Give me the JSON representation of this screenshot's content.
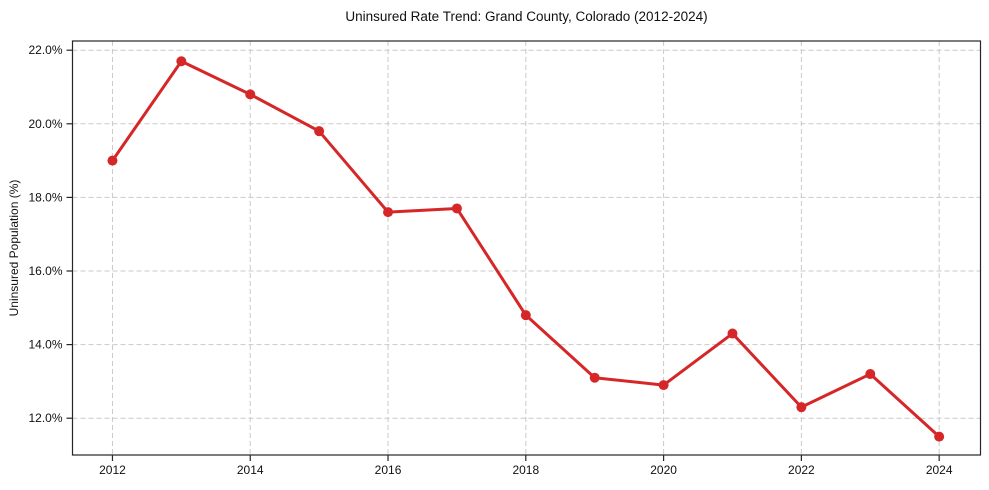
{
  "chart_data": {
    "type": "line",
    "title": "Uninsured Rate Trend: Grand County, Colorado (2012-2024)",
    "xlabel": "",
    "ylabel": "Uninsured Population (%)",
    "x": [
      2012,
      2013,
      2014,
      2015,
      2016,
      2017,
      2018,
      2019,
      2020,
      2021,
      2022,
      2023,
      2024
    ],
    "series": [
      {
        "name": "Uninsured Population (%)",
        "values": [
          19.0,
          21.7,
          20.8,
          19.8,
          17.6,
          17.7,
          14.8,
          13.1,
          12.9,
          14.3,
          12.3,
          13.2,
          11.5
        ]
      }
    ],
    "xlim": [
      2011.42,
      2024.6
    ],
    "ylim": [
      11.0,
      22.25
    ],
    "xticks": [
      2012,
      2014,
      2016,
      2018,
      2020,
      2022,
      2024
    ],
    "xtick_labels": [
      "2012",
      "2014",
      "2016",
      "2018",
      "2020",
      "2022",
      "2024"
    ],
    "yticks": [
      12,
      14,
      16,
      18,
      20,
      22
    ],
    "ytick_labels": [
      "12.0%",
      "14.0%",
      "16.0%",
      "18.0%",
      "20.0%",
      "22.0%"
    ],
    "grid": true,
    "legend": "none",
    "line_color": "#d62728",
    "grid_color": "#c9c9c9",
    "marker": "circle",
    "marker_radius": 5,
    "line_width": 3
  }
}
